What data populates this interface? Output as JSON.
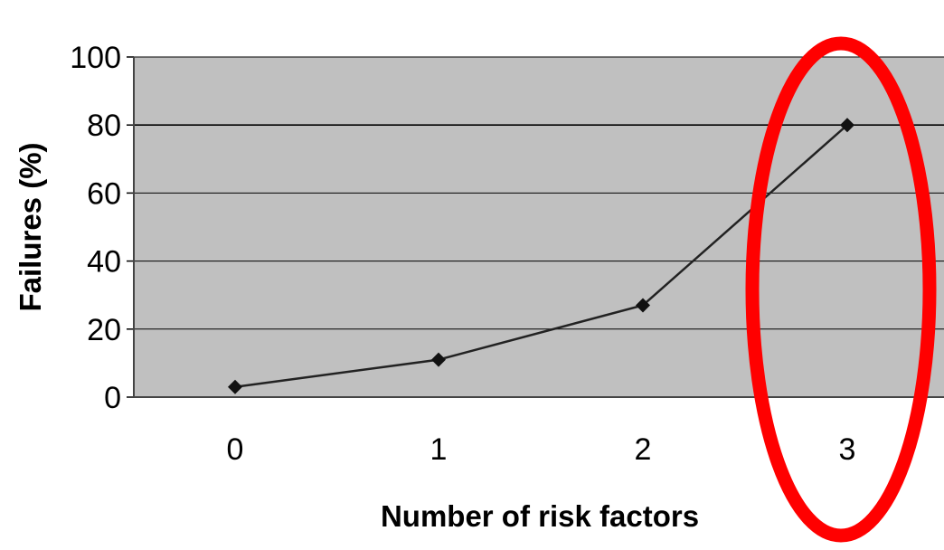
{
  "chart_data": {
    "type": "line",
    "xlabel": "Number of risk factors",
    "ylabel": "Failures (%)",
    "categories": [
      "0",
      "1",
      "2",
      "3"
    ],
    "series": [
      {
        "values": [
          3,
          11,
          27,
          80
        ]
      }
    ],
    "ylim": [
      0,
      100
    ],
    "yticks": [
      "0",
      "20",
      "40",
      "60",
      "80",
      "100"
    ],
    "grid": true,
    "colors": {
      "plot_background": "#c0c0c0",
      "line": "#222222",
      "gridline": "#000000",
      "annotation_ellipse": "#ff0000"
    },
    "annotation": {
      "shape": "ellipse",
      "highlights_category": "3"
    }
  }
}
